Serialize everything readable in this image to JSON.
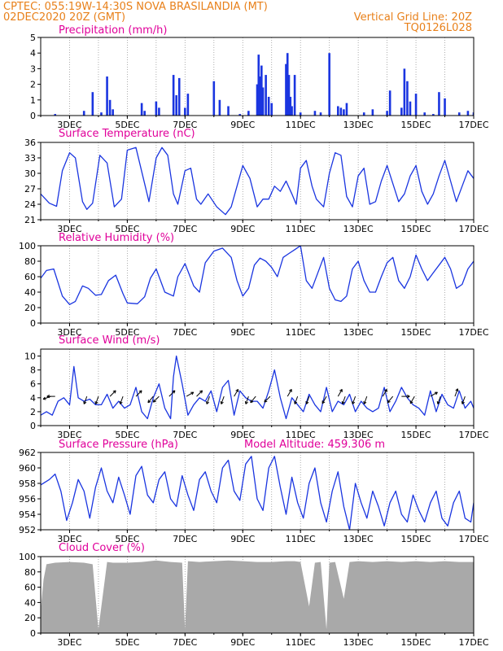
{
  "header": {
    "line1": "CPTEC:   055:19W-14:30S   NOVA BRASILANDIA (MT)",
    "line2_left": "02DEC2020 20Z (GMT)",
    "line2_right": "Vertical Grid Line: 20Z",
    "line3_right": "TQ0126L028"
  },
  "colors": {
    "header": "#e8801a",
    "panel_title": "#e0009a",
    "series": "#1a35e0",
    "bars": "#1a35e0",
    "cloud": "#a9a9a9",
    "grid": "#999999"
  },
  "chart_data": [
    {
      "type": "bar",
      "title": "Precipitation (mm/h)",
      "xlabel": "",
      "ylabel": "",
      "x_ticks": [
        "3DEC",
        "5DEC",
        "7DEC",
        "9DEC",
        "11DEC",
        "13DEC",
        "15DEC",
        "17DEC"
      ],
      "ylim": [
        0,
        5
      ],
      "y_ticks": [
        0,
        1,
        2,
        3,
        4,
        5
      ],
      "grid": "vertical dotted",
      "x": [
        2.5,
        3.5,
        3.8,
        4.1,
        4.3,
        4.4,
        4.5,
        5.5,
        5.6,
        6.0,
        6.1,
        6.6,
        6.7,
        6.8,
        7.0,
        7.1,
        8.0,
        8.2,
        8.5,
        8.9,
        9.2,
        9.5,
        9.55,
        9.6,
        9.65,
        9.7,
        9.8,
        9.9,
        10.0,
        10.5,
        10.55,
        10.6,
        10.65,
        10.7,
        10.8,
        11.0,
        11.5,
        11.7,
        12.0,
        12.3,
        12.4,
        12.5,
        12.6,
        13.2,
        13.5,
        14.0,
        14.1,
        14.5,
        14.6,
        14.7,
        14.8,
        15.0,
        15.3,
        15.6,
        15.8,
        16.0,
        16.5,
        16.8,
        17.0
      ],
      "values": [
        0.1,
        0.3,
        1.5,
        0.2,
        2.5,
        1.0,
        0.4,
        0.8,
        0.3,
        0.9,
        0.5,
        2.6,
        1.3,
        2.4,
        0.5,
        1.4,
        2.2,
        1.0,
        0.6,
        0.1,
        0.3,
        2.0,
        3.9,
        2.5,
        3.2,
        1.8,
        2.6,
        1.2,
        0.8,
        3.3,
        4.0,
        2.6,
        1.2,
        0.6,
        2.6,
        0.2,
        0.3,
        0.2,
        4.0,
        0.6,
        0.5,
        0.4,
        0.8,
        0.2,
        0.4,
        0.3,
        1.6,
        0.5,
        3.0,
        2.2,
        0.9,
        1.4,
        0.2,
        0.1,
        1.5,
        1.1,
        0.2,
        0.3,
        0.2
      ]
    },
    {
      "type": "line",
      "title": "Surface Temperature (nC)",
      "xlabel": "",
      "ylabel": "",
      "x_ticks": [
        "3DEC",
        "5DEC",
        "7DEC",
        "9DEC",
        "11DEC",
        "13DEC",
        "15DEC",
        "17DEC"
      ],
      "ylim": [
        21,
        36
      ],
      "y_ticks": [
        21,
        24,
        27,
        30,
        33,
        36
      ],
      "series": [
        {
          "x": [
            2.0,
            2.3,
            2.55,
            2.75,
            3.0,
            3.2,
            3.45,
            3.6,
            3.8,
            4.05,
            4.3,
            4.55,
            4.8,
            5.0,
            5.3,
            5.6,
            5.75,
            6.0,
            6.2,
            6.4,
            6.6,
            6.75,
            7.0,
            7.2,
            7.4,
            7.55,
            7.8,
            8.1,
            8.4,
            8.6,
            8.75,
            9.0,
            9.25,
            9.5,
            9.7,
            9.9,
            10.1,
            10.3,
            10.5,
            10.7,
            10.85,
            11.0,
            11.2,
            11.4,
            11.55,
            11.8,
            12.0,
            12.2,
            12.4,
            12.6,
            12.8,
            13.0,
            13.2,
            13.4,
            13.6,
            13.8,
            14.0,
            14.2,
            14.4,
            14.6,
            14.8,
            15.0,
            15.2,
            15.4,
            15.6,
            15.8,
            16.0,
            16.2,
            16.4,
            16.6,
            16.8,
            17.0
          ],
          "values": [
            26.0,
            24.2,
            23.6,
            30.5,
            34.0,
            33.0,
            24.5,
            23.0,
            24.2,
            33.5,
            32.0,
            23.5,
            25.0,
            34.5,
            35.0,
            28.0,
            24.5,
            33.0,
            35.0,
            33.5,
            26.0,
            24.0,
            30.5,
            31.0,
            25.0,
            24.0,
            26.0,
            23.5,
            22.0,
            23.5,
            26.5,
            31.5,
            29.0,
            23.5,
            25.0,
            25.0,
            27.5,
            26.5,
            28.5,
            26.0,
            24.0,
            31.0,
            32.5,
            27.5,
            25.0,
            23.5,
            30.0,
            34.0,
            33.5,
            25.5,
            23.5,
            29.5,
            31.0,
            24.0,
            24.5,
            28.5,
            31.5,
            28.0,
            24.5,
            26.0,
            29.5,
            31.5,
            26.5,
            24.0,
            26.0,
            29.5,
            32.5,
            28.5,
            24.5,
            27.5,
            30.5,
            29.0
          ]
        }
      ]
    },
    {
      "type": "line",
      "title": "Relative Humidity (%)",
      "xlabel": "",
      "ylabel": "",
      "x_ticks": [
        "3DEC",
        "5DEC",
        "7DEC",
        "9DEC",
        "11DEC",
        "13DEC",
        "15DEC",
        "17DEC"
      ],
      "ylim": [
        0,
        100
      ],
      "y_ticks": [
        0,
        20,
        40,
        60,
        80,
        100
      ],
      "series": [
        {
          "x": [
            2.0,
            2.2,
            2.45,
            2.75,
            3.0,
            3.2,
            3.45,
            3.65,
            3.9,
            4.1,
            4.35,
            4.6,
            4.85,
            5.0,
            5.35,
            5.6,
            5.8,
            6.0,
            6.3,
            6.6,
            6.75,
            7.0,
            7.3,
            7.5,
            7.7,
            8.0,
            8.3,
            8.6,
            8.8,
            9.0,
            9.2,
            9.4,
            9.6,
            9.8,
            10.0,
            10.2,
            10.4,
            10.6,
            10.8,
            11.0,
            11.2,
            11.4,
            11.6,
            11.8,
            12.0,
            12.2,
            12.4,
            12.6,
            12.8,
            13.0,
            13.2,
            13.4,
            13.6,
            13.8,
            14.0,
            14.2,
            14.4,
            14.6,
            14.8,
            15.0,
            15.2,
            15.4,
            15.6,
            15.8,
            16.0,
            16.2,
            16.4,
            16.6,
            16.8,
            17.0
          ],
          "values": [
            58,
            68,
            70,
            35,
            24,
            28,
            48,
            45,
            36,
            37,
            55,
            62,
            38,
            26,
            25,
            34,
            58,
            70,
            40,
            35,
            60,
            77,
            48,
            40,
            78,
            93,
            97,
            85,
            55,
            35,
            45,
            75,
            84,
            80,
            72,
            60,
            85,
            90,
            95,
            100,
            55,
            45,
            65,
            85,
            45,
            30,
            28,
            35,
            70,
            80,
            55,
            40,
            40,
            60,
            78,
            85,
            55,
            45,
            60,
            88,
            70,
            55,
            65,
            75,
            85,
            70,
            45,
            50,
            70,
            80
          ]
        }
      ]
    },
    {
      "type": "line",
      "title": "Surface Wind (m/s)",
      "xlabel": "",
      "ylabel": "",
      "x_ticks": [
        "3DEC",
        "5DEC",
        "7DEC",
        "9DEC",
        "11DEC",
        "13DEC",
        "15DEC",
        "17DEC"
      ],
      "ylim": [
        0,
        11
      ],
      "y_ticks": [
        0,
        2,
        4,
        6,
        8,
        10
      ],
      "series": [
        {
          "x": [
            2.0,
            2.2,
            2.4,
            2.6,
            2.8,
            3.0,
            3.15,
            3.3,
            3.5,
            3.7,
            3.9,
            4.1,
            4.3,
            4.5,
            4.7,
            4.9,
            5.1,
            5.3,
            5.5,
            5.7,
            5.9,
            6.1,
            6.3,
            6.5,
            6.6,
            6.7,
            6.9,
            7.1,
            7.3,
            7.5,
            7.7,
            7.9,
            8.1,
            8.3,
            8.5,
            8.7,
            8.9,
            9.1,
            9.3,
            9.5,
            9.7,
            9.9,
            10.1,
            10.3,
            10.5,
            10.7,
            10.9,
            11.1,
            11.3,
            11.5,
            11.7,
            11.9,
            12.1,
            12.3,
            12.5,
            12.7,
            12.9,
            13.1,
            13.3,
            13.5,
            13.7,
            13.9,
            14.1,
            14.3,
            14.5,
            14.7,
            14.9,
            15.1,
            15.3,
            15.5,
            15.7,
            15.9,
            16.1,
            16.3,
            16.5,
            16.7,
            16.9,
            17.0
          ],
          "values": [
            1.5,
            2.0,
            1.5,
            3.5,
            4.0,
            3.0,
            8.5,
            4.0,
            3.5,
            3.8,
            3.0,
            3.0,
            4.5,
            2.5,
            3.5,
            2.5,
            3.0,
            5.5,
            2.0,
            1.0,
            4.0,
            6.0,
            2.5,
            1.0,
            7.0,
            10.0,
            6.0,
            1.5,
            3.0,
            4.0,
            3.5,
            5.0,
            2.0,
            5.5,
            6.5,
            1.5,
            5.0,
            4.0,
            3.5,
            3.5,
            2.5,
            5.0,
            8.0,
            4.0,
            1.0,
            4.0,
            3.0,
            2.0,
            4.5,
            3.0,
            2.0,
            5.5,
            2.0,
            3.5,
            3.0,
            4.5,
            2.0,
            3.5,
            2.5,
            2.0,
            2.5,
            5.5,
            2.0,
            3.5,
            5.5,
            4.0,
            3.0,
            2.5,
            1.5,
            5.0,
            2.0,
            4.5,
            3.0,
            2.5,
            5.0,
            2.5,
            3.5,
            2.5
          ]
        }
      ],
      "wind_arrows": [
        {
          "x": 2.35,
          "dir": 250
        },
        {
          "x": 2.5,
          "dir": 270
        },
        {
          "x": 3.6,
          "dir": 200
        },
        {
          "x": 4.0,
          "dir": 200
        },
        {
          "x": 4.4,
          "dir": 45
        },
        {
          "x": 4.85,
          "dir": 200
        },
        {
          "x": 5.3,
          "dir": 45
        },
        {
          "x": 5.9,
          "dir": 220
        },
        {
          "x": 6.1,
          "dir": 225
        },
        {
          "x": 6.45,
          "dir": 45
        },
        {
          "x": 7.05,
          "dir": 60
        },
        {
          "x": 7.4,
          "dir": 45
        },
        {
          "x": 7.85,
          "dir": 200
        },
        {
          "x": 8.35,
          "dir": 200
        },
        {
          "x": 8.7,
          "dir": 30
        },
        {
          "x": 9.2,
          "dir": 200
        },
        {
          "x": 9.45,
          "dir": 220
        },
        {
          "x": 9.95,
          "dir": 225
        },
        {
          "x": 10.55,
          "dir": 30
        },
        {
          "x": 10.9,
          "dir": 200
        },
        {
          "x": 11.3,
          "dir": 200
        },
        {
          "x": 11.9,
          "dir": 210
        },
        {
          "x": 12.3,
          "dir": 30
        },
        {
          "x": 12.55,
          "dir": 200
        },
        {
          "x": 12.9,
          "dir": 200
        },
        {
          "x": 13.3,
          "dir": 200
        },
        {
          "x": 13.85,
          "dir": 30
        },
        {
          "x": 14.2,
          "dir": 220
        },
        {
          "x": 14.5,
          "dir": 90
        },
        {
          "x": 14.95,
          "dir": 210
        },
        {
          "x": 15.5,
          "dir": 60
        },
        {
          "x": 15.85,
          "dir": 200
        },
        {
          "x": 16.35,
          "dir": 20
        },
        {
          "x": 16.7,
          "dir": 200
        }
      ]
    },
    {
      "type": "line",
      "title": "Surface Pressure (hPa)",
      "subtitle": "Model Altitude: 459.306 m",
      "xlabel": "",
      "ylabel": "",
      "x_ticks": [
        "3DEC",
        "5DEC",
        "7DEC",
        "9DEC",
        "11DEC",
        "13DEC",
        "15DEC",
        "17DEC"
      ],
      "ylim": [
        952,
        962
      ],
      "y_ticks": [
        952,
        954,
        956,
        958,
        960,
        962
      ],
      "series": [
        {
          "x": [
            2.0,
            2.3,
            2.5,
            2.7,
            2.9,
            3.1,
            3.3,
            3.5,
            3.7,
            3.9,
            4.1,
            4.3,
            4.5,
            4.7,
            4.9,
            5.1,
            5.3,
            5.5,
            5.7,
            5.9,
            6.1,
            6.3,
            6.5,
            6.7,
            6.9,
            7.1,
            7.3,
            7.5,
            7.7,
            7.9,
            8.1,
            8.3,
            8.5,
            8.7,
            8.9,
            9.1,
            9.3,
            9.5,
            9.7,
            9.9,
            10.1,
            10.3,
            10.5,
            10.7,
            10.9,
            11.1,
            11.3,
            11.5,
            11.7,
            11.9,
            12.1,
            12.3,
            12.5,
            12.7,
            12.9,
            13.1,
            13.3,
            13.5,
            13.7,
            13.9,
            14.1,
            14.3,
            14.5,
            14.7,
            14.9,
            15.1,
            15.3,
            15.5,
            15.7,
            15.9,
            16.1,
            16.3,
            16.5,
            16.7,
            16.9,
            17.0
          ],
          "values": [
            957.8,
            958.5,
            959.2,
            957.0,
            953.2,
            955.5,
            958.5,
            957.0,
            953.5,
            957.5,
            960.0,
            957.0,
            955.5,
            958.8,
            956.5,
            954.0,
            959.0,
            960.2,
            956.5,
            955.5,
            958.5,
            959.5,
            956.0,
            955.0,
            959.0,
            956.5,
            954.5,
            958.5,
            959.5,
            957.0,
            955.5,
            960.0,
            961.0,
            957.0,
            955.8,
            960.5,
            961.5,
            956.0,
            954.5,
            960.0,
            961.5,
            957.5,
            954.0,
            958.8,
            955.5,
            953.5,
            958.0,
            960.0,
            955.5,
            953.0,
            957.0,
            959.5,
            955.0,
            952.0,
            958.0,
            955.5,
            953.5,
            957.0,
            955.0,
            952.5,
            955.5,
            957.0,
            954.0,
            953.0,
            956.5,
            954.5,
            953.0,
            955.5,
            957.0,
            953.5,
            952.5,
            955.5,
            957.0,
            953.5,
            953.0,
            955.5
          ]
        }
      ]
    },
    {
      "type": "area",
      "title": "Cloud Cover (%)",
      "xlabel": "",
      "ylabel": "",
      "x_ticks": [
        "3DEC",
        "5DEC",
        "7DEC",
        "9DEC",
        "11DEC",
        "13DEC",
        "15DEC",
        "17DEC"
      ],
      "ylim": [
        0,
        100
      ],
      "y_ticks": [
        0,
        20,
        40,
        60,
        80,
        100
      ],
      "series": [
        {
          "x": [
            2.0,
            2.1,
            2.2,
            2.5,
            3.0,
            3.5,
            3.8,
            4.0,
            4.3,
            4.5,
            5.0,
            5.5,
            6.0,
            6.5,
            6.9,
            7.0,
            7.1,
            7.5,
            8.0,
            8.5,
            9.0,
            9.5,
            10.0,
            10.5,
            10.8,
            11.0,
            11.3,
            11.5,
            11.7,
            11.9,
            12.0,
            12.2,
            12.5,
            12.7,
            13.0,
            13.5,
            14.0,
            14.5,
            15.0,
            15.5,
            16.0,
            16.5,
            17.0
          ],
          "values": [
            30,
            70,
            90,
            92,
            93,
            92,
            90,
            5,
            93,
            92,
            92,
            93,
            95,
            93,
            92,
            5,
            94,
            93,
            94,
            95,
            94,
            93,
            93,
            94,
            94,
            93,
            35,
            92,
            93,
            5,
            92,
            93,
            45,
            93,
            94,
            93,
            94,
            93,
            94,
            93,
            94,
            93,
            93
          ]
        }
      ]
    }
  ]
}
